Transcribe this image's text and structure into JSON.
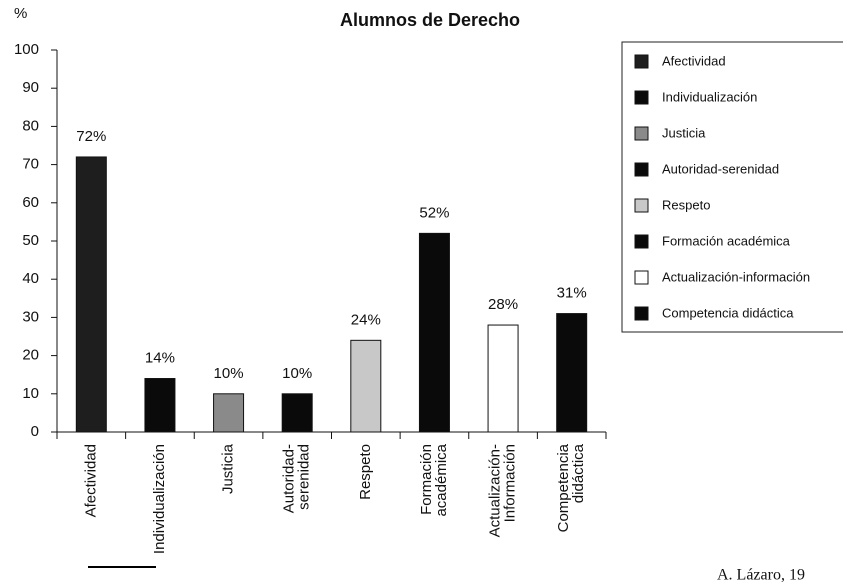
{
  "chart_data": {
    "type": "bar",
    "title": "Alumnos de Derecho",
    "y_label": "%",
    "categories": [
      "Afectividad",
      "Individualización",
      "Justicia",
      "Autoridad-\nserenidad",
      "Respeto",
      "Formación\nacadémica",
      "Actualización-\nInformación",
      "Competencia\ndidáctica"
    ],
    "values": [
      72,
      14,
      10,
      10,
      24,
      52,
      28,
      31
    ],
    "value_labels": [
      "72%",
      "14%",
      "10%",
      "10%",
      "24%",
      "52%",
      "28%",
      "31%"
    ],
    "colors": [
      "#1e1e1e",
      "#0a0a0a",
      "#8a8a8a",
      "#0a0a0a",
      "#c8c8c8",
      "#0a0a0a",
      "#ffffff",
      "#0a0a0a"
    ],
    "legend": [
      "Afectividad",
      "Individualización",
      "Justicia",
      "Autoridad-serenidad",
      "Respeto",
      "Formación académica",
      "Actualización-información",
      "Competencia didáctica"
    ],
    "ylim": [
      0,
      100
    ],
    "yticks": [
      0,
      10,
      20,
      30,
      40,
      50,
      60,
      70,
      80,
      90,
      100
    ],
    "source": "A. Lázaro, 19"
  }
}
